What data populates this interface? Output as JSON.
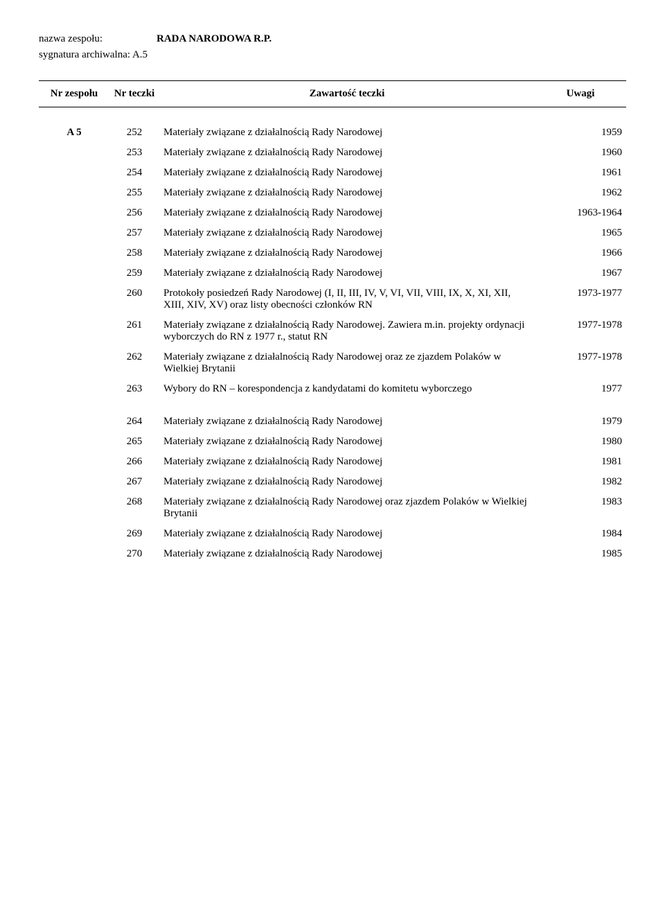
{
  "header": {
    "name_label": "nazwa zespołu:",
    "name_value": "RADA NARODOWA R.P.",
    "sig_label": "sygnatura archiwalna: A.5"
  },
  "columns": {
    "nrz": "Nr zespołu",
    "nrt": "Nr teczki",
    "content": "Zawartość teczki",
    "remarks": "Uwagi"
  },
  "group_label": "A 5",
  "rows": [
    {
      "nr": "252",
      "content": "Materiały związane z działalnością Rady Narodowej",
      "remarks": "1959"
    },
    {
      "nr": "253",
      "content": "Materiały związane z działalnością Rady Narodowej",
      "remarks": "1960"
    },
    {
      "nr": "254",
      "content": "Materiały związane z działalnością Rady Narodowej",
      "remarks": "1961"
    },
    {
      "nr": "255",
      "content": "Materiały związane z działalnością Rady Narodowej",
      "remarks": "1962"
    },
    {
      "nr": "256",
      "content": "Materiały związane z działalnością Rady Narodowej",
      "remarks": "1963-1964"
    },
    {
      "nr": "257",
      "content": "Materiały związane z działalnością Rady Narodowej",
      "remarks": "1965"
    },
    {
      "nr": "258",
      "content": "Materiały związane z działalnością Rady Narodowej",
      "remarks": "1966"
    },
    {
      "nr": "259",
      "content": "Materiały związane z działalnością Rady Narodowej",
      "remarks": "1967"
    },
    {
      "nr": "260",
      "content": "Protokoły posiedzeń Rady Narodowej  (I, II, III, IV, V, VI, VII, VIII, IX, X, XI, XII, XIII, XIV, XV) oraz listy obecności członków RN",
      "remarks": "1973-1977"
    },
    {
      "nr": "261",
      "content": "Materiały związane z działalnością Rady Narodowej. Zawiera m.in. projekty ordynacji wyborczych do RN z 1977 r., statut RN",
      "remarks": "1977-1978"
    },
    {
      "nr": "262",
      "content": "Materiały związane z działalnością Rady Narodowej oraz ze zjazdem Polaków w Wielkiej Brytanii",
      "remarks": "1977-1978"
    },
    {
      "nr": "263",
      "content": "Wybory do RN – korespondencja z kandydatami do komitetu wyborczego",
      "remarks": "1977"
    }
  ],
  "rows2": [
    {
      "nr": "264",
      "content": "Materiały związane z działalnością Rady Narodowej",
      "remarks": "1979"
    },
    {
      "nr": "265",
      "content": "Materiały związane z działalnością Rady Narodowej",
      "remarks": "1980"
    },
    {
      "nr": "266",
      "content": "Materiały związane z działalnością Rady Narodowej",
      "remarks": "1981"
    },
    {
      "nr": "267",
      "content": "Materiały związane z działalnością Rady Narodowej",
      "remarks": "1982"
    },
    {
      "nr": "268",
      "content": "Materiały związane z działalnością Rady Narodowej oraz zjazdem Polaków w Wielkiej Brytanii",
      "remarks": "1983"
    },
    {
      "nr": "269",
      "content": "Materiały związane z działalnością Rady Narodowej",
      "remarks": "1984"
    },
    {
      "nr": "270",
      "content": "Materiały związane z działalnością Rady Narodowej",
      "remarks": "1985"
    }
  ]
}
